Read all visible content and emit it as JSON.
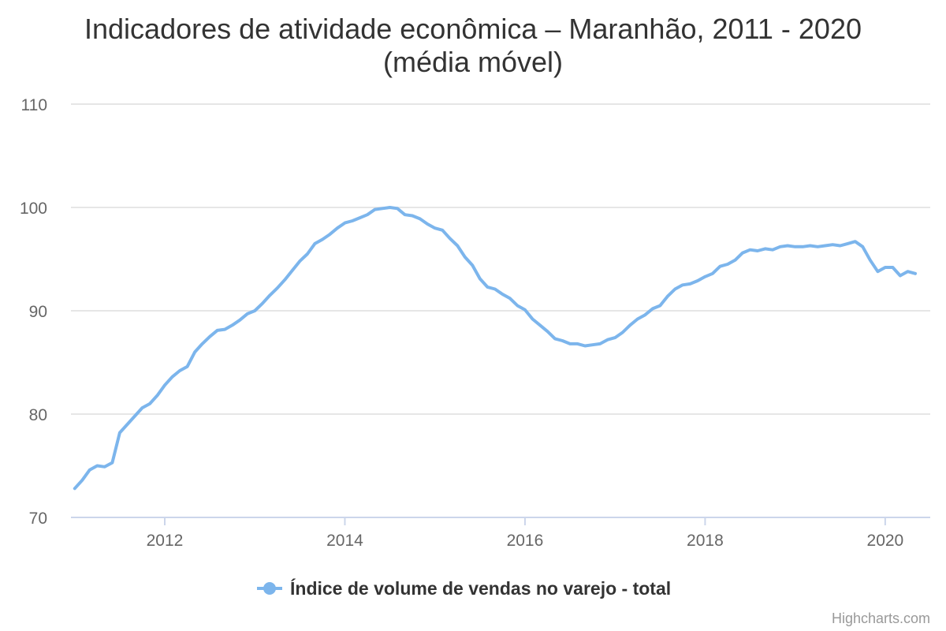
{
  "credits": "Highcharts.com",
  "chart_data": {
    "type": "line",
    "title": "Indicadores de atividade econômica – Maranhão, 2011 - 2020",
    "subtitle": "(média móvel)",
    "xlabel": "",
    "ylabel": "",
    "ylim": [
      70,
      110
    ],
    "y_ticks": [
      70,
      80,
      90,
      100,
      110
    ],
    "x_ticks": [
      "2012",
      "2014",
      "2016",
      "2018",
      "2020"
    ],
    "grid": true,
    "legend_position": "bottom-center",
    "series": [
      {
        "name": "Índice de volume de vendas no varejo - total",
        "color": "#7cb5ec",
        "points": [
          [
            "2011-01",
            72.8
          ],
          [
            "2011-02",
            73.6
          ],
          [
            "2011-03",
            74.6
          ],
          [
            "2011-04",
            75.0
          ],
          [
            "2011-05",
            74.9
          ],
          [
            "2011-06",
            75.3
          ],
          [
            "2011-07",
            78.2
          ],
          [
            "2011-08",
            79.0
          ],
          [
            "2011-09",
            79.8
          ],
          [
            "2011-10",
            80.6
          ],
          [
            "2011-11",
            81.0
          ],
          [
            "2011-12",
            81.8
          ],
          [
            "2012-01",
            82.8
          ],
          [
            "2012-02",
            83.6
          ],
          [
            "2012-03",
            84.2
          ],
          [
            "2012-04",
            84.6
          ],
          [
            "2012-05",
            86.0
          ],
          [
            "2012-06",
            86.8
          ],
          [
            "2012-07",
            87.5
          ],
          [
            "2012-08",
            88.1
          ],
          [
            "2012-09",
            88.2
          ],
          [
            "2012-10",
            88.6
          ],
          [
            "2012-11",
            89.1
          ],
          [
            "2012-12",
            89.7
          ],
          [
            "2013-01",
            90.0
          ],
          [
            "2013-02",
            90.7
          ],
          [
            "2013-03",
            91.5
          ],
          [
            "2013-04",
            92.2
          ],
          [
            "2013-05",
            93.0
          ],
          [
            "2013-06",
            93.9
          ],
          [
            "2013-07",
            94.8
          ],
          [
            "2013-08",
            95.5
          ],
          [
            "2013-09",
            96.5
          ],
          [
            "2013-10",
            96.9
          ],
          [
            "2013-11",
            97.4
          ],
          [
            "2013-12",
            98.0
          ],
          [
            "2014-01",
            98.5
          ],
          [
            "2014-02",
            98.7
          ],
          [
            "2014-03",
            99.0
          ],
          [
            "2014-04",
            99.3
          ],
          [
            "2014-05",
            99.8
          ],
          [
            "2014-06",
            99.9
          ],
          [
            "2014-07",
            100.0
          ],
          [
            "2014-08",
            99.9
          ],
          [
            "2014-09",
            99.3
          ],
          [
            "2014-10",
            99.2
          ],
          [
            "2014-11",
            98.9
          ],
          [
            "2014-12",
            98.4
          ],
          [
            "2015-01",
            98.0
          ],
          [
            "2015-02",
            97.8
          ],
          [
            "2015-03",
            97.0
          ],
          [
            "2015-04",
            96.3
          ],
          [
            "2015-05",
            95.2
          ],
          [
            "2015-06",
            94.4
          ],
          [
            "2015-07",
            93.1
          ],
          [
            "2015-08",
            92.3
          ],
          [
            "2015-09",
            92.1
          ],
          [
            "2015-10",
            91.6
          ],
          [
            "2015-11",
            91.2
          ],
          [
            "2015-12",
            90.5
          ],
          [
            "2016-01",
            90.1
          ],
          [
            "2016-02",
            89.2
          ],
          [
            "2016-03",
            88.6
          ],
          [
            "2016-04",
            88.0
          ],
          [
            "2016-05",
            87.3
          ],
          [
            "2016-06",
            87.1
          ],
          [
            "2016-07",
            86.8
          ],
          [
            "2016-08",
            86.8
          ],
          [
            "2016-09",
            86.6
          ],
          [
            "2016-10",
            86.7
          ],
          [
            "2016-11",
            86.8
          ],
          [
            "2016-12",
            87.2
          ],
          [
            "2017-01",
            87.4
          ],
          [
            "2017-02",
            87.9
          ],
          [
            "2017-03",
            88.6
          ],
          [
            "2017-04",
            89.2
          ],
          [
            "2017-05",
            89.6
          ],
          [
            "2017-06",
            90.2
          ],
          [
            "2017-07",
            90.5
          ],
          [
            "2017-08",
            91.4
          ],
          [
            "2017-09",
            92.1
          ],
          [
            "2017-10",
            92.5
          ],
          [
            "2017-11",
            92.6
          ],
          [
            "2017-12",
            92.9
          ],
          [
            "2018-01",
            93.3
          ],
          [
            "2018-02",
            93.6
          ],
          [
            "2018-03",
            94.3
          ],
          [
            "2018-04",
            94.5
          ],
          [
            "2018-05",
            94.9
          ],
          [
            "2018-06",
            95.6
          ],
          [
            "2018-07",
            95.9
          ],
          [
            "2018-08",
            95.8
          ],
          [
            "2018-09",
            96.0
          ],
          [
            "2018-10",
            95.9
          ],
          [
            "2018-11",
            96.2
          ],
          [
            "2018-12",
            96.3
          ],
          [
            "2019-01",
            96.2
          ],
          [
            "2019-02",
            96.2
          ],
          [
            "2019-03",
            96.3
          ],
          [
            "2019-04",
            96.2
          ],
          [
            "2019-05",
            96.3
          ],
          [
            "2019-06",
            96.4
          ],
          [
            "2019-07",
            96.3
          ],
          [
            "2019-08",
            96.5
          ],
          [
            "2019-09",
            96.7
          ],
          [
            "2019-10",
            96.2
          ],
          [
            "2019-11",
            94.9
          ],
          [
            "2019-12",
            93.8
          ],
          [
            "2020-01",
            94.2
          ],
          [
            "2020-02",
            94.2
          ],
          [
            "2020-03",
            93.4
          ],
          [
            "2020-04",
            93.8
          ],
          [
            "2020-05",
            93.6
          ]
        ]
      }
    ]
  }
}
